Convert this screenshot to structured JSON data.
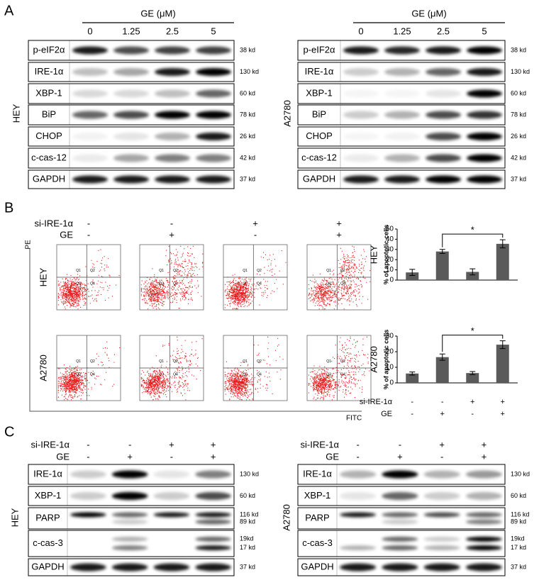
{
  "panel_a": {
    "label": "A",
    "blots": [
      {
        "cell_line": "HEY",
        "header": "GE (μM)",
        "lanes": [
          "0",
          "1.25",
          "2.5",
          "5"
        ],
        "rows": [
          {
            "name": "p-eIF2α",
            "kd": [
              "38 kd"
            ]
          },
          {
            "name": "IRE-1α",
            "kd": [
              "130 kd"
            ]
          },
          {
            "name": "XBP-1",
            "kd": [
              "60 kd"
            ]
          },
          {
            "name": "BiP",
            "kd": [
              "78 kd"
            ]
          },
          {
            "name": "CHOP",
            "kd": [
              "26 kd"
            ]
          },
          {
            "name": "c-cas-12",
            "kd": [
              "42 kd"
            ]
          },
          {
            "name": "GAPDH",
            "kd": [
              "37 kd"
            ]
          }
        ]
      },
      {
        "cell_line": "A2780",
        "header": "GE (μM)",
        "lanes": [
          "0",
          "1.25",
          "2.5",
          "5"
        ],
        "rows": [
          {
            "name": "p-eIF2α",
            "kd": [
              "38 kd"
            ]
          },
          {
            "name": "IRE-1α",
            "kd": [
              "130 kd"
            ]
          },
          {
            "name": "XBP-1",
            "kd": [
              "60 kd"
            ]
          },
          {
            "name": "BiP",
            "kd": [
              "78 kd"
            ]
          },
          {
            "name": "CHOP",
            "kd": [
              "26 kd"
            ]
          },
          {
            "name": "c-cas-12",
            "kd": [
              "42 kd"
            ]
          },
          {
            "name": "GAPDH",
            "kd": [
              "37 kd"
            ]
          }
        ]
      }
    ]
  },
  "panel_b": {
    "label": "B",
    "conditions": [
      {
        "name": "si-IRE-1α",
        "signs": [
          "-",
          "-",
          "+",
          "+"
        ]
      },
      {
        "name": "GE",
        "signs": [
          "-",
          "+",
          "-",
          "+"
        ]
      }
    ],
    "flow": {
      "y_axis": "PE",
      "x_axis": "FITC",
      "rows": [
        "HEY",
        "A2780"
      ],
      "quadrants": [
        "Q1",
        "Q2",
        "Q3",
        "Q4"
      ]
    }
  },
  "chart_data": [
    {
      "type": "bar",
      "title": "HEY",
      "y_label": "% of apoptotic cells",
      "categories": [
        null,
        null,
        null,
        null
      ],
      "values": [
        7.5,
        28,
        8,
        35.5
      ],
      "errors": [
        3,
        2,
        3,
        4
      ],
      "color": "#5a5a5a",
      "significance": "*",
      "ylim": [
        0,
        50
      ],
      "yticks": [
        0,
        10,
        20,
        30,
        40,
        50
      ]
    },
    {
      "type": "bar",
      "title": "A2780",
      "y_label": "% of apoptotic cells",
      "categories": [
        null,
        null,
        null,
        null
      ],
      "values": [
        6,
        16.5,
        6.3,
        24.5
      ],
      "errors": [
        1,
        2,
        1,
        2.5
      ],
      "color": "#5a5a5a",
      "significance": "*",
      "ylim": [
        0,
        30
      ],
      "yticks": [
        0,
        10,
        20,
        30
      ],
      "x_rows": [
        {
          "name": "si-IRE-1α",
          "signs": [
            "-",
            "-",
            "+",
            "+"
          ]
        },
        {
          "name": "GE",
          "signs": [
            "-",
            "+",
            "-",
            "+"
          ]
        }
      ]
    }
  ],
  "panel_c": {
    "label": "C",
    "blots": [
      {
        "cell_line": "HEY",
        "conditions": [
          {
            "name": "si-IRE-1α",
            "signs": [
              "-",
              "-",
              "+",
              "+"
            ]
          },
          {
            "name": "GE",
            "signs": [
              "-",
              "+",
              "-",
              "+"
            ]
          }
        ],
        "rows": [
          {
            "name": "IRE-1α",
            "kd": [
              "130 kd"
            ]
          },
          {
            "name": "XBP-1",
            "kd": [
              "60 kd"
            ]
          },
          {
            "name": "PARP",
            "kd": [
              "116 kd",
              "89 kd"
            ]
          },
          {
            "name": "c-cas-3",
            "kd": [
              "19kd",
              "17 kd"
            ]
          },
          {
            "name": "GAPDH",
            "kd": [
              "37 kd"
            ]
          }
        ]
      },
      {
        "cell_line": "A2780",
        "conditions": [
          {
            "name": "si-IRE-1α",
            "signs": [
              "-",
              "-",
              "+",
              "+"
            ]
          },
          {
            "name": "GE",
            "signs": [
              "-",
              "+",
              "-",
              "+"
            ]
          }
        ],
        "rows": [
          {
            "name": "IRE-1α",
            "kd": [
              "130 kd"
            ]
          },
          {
            "name": "XBP-1",
            "kd": [
              "60 kd"
            ]
          },
          {
            "name": "PARP",
            "kd": [
              "116 kd",
              "89 kd"
            ]
          },
          {
            "name": "c-cas-3",
            "kd": [
              "19kd",
              "17 kd"
            ]
          },
          {
            "name": "GAPDH",
            "kd": [
              "37 kd"
            ]
          }
        ]
      }
    ]
  }
}
